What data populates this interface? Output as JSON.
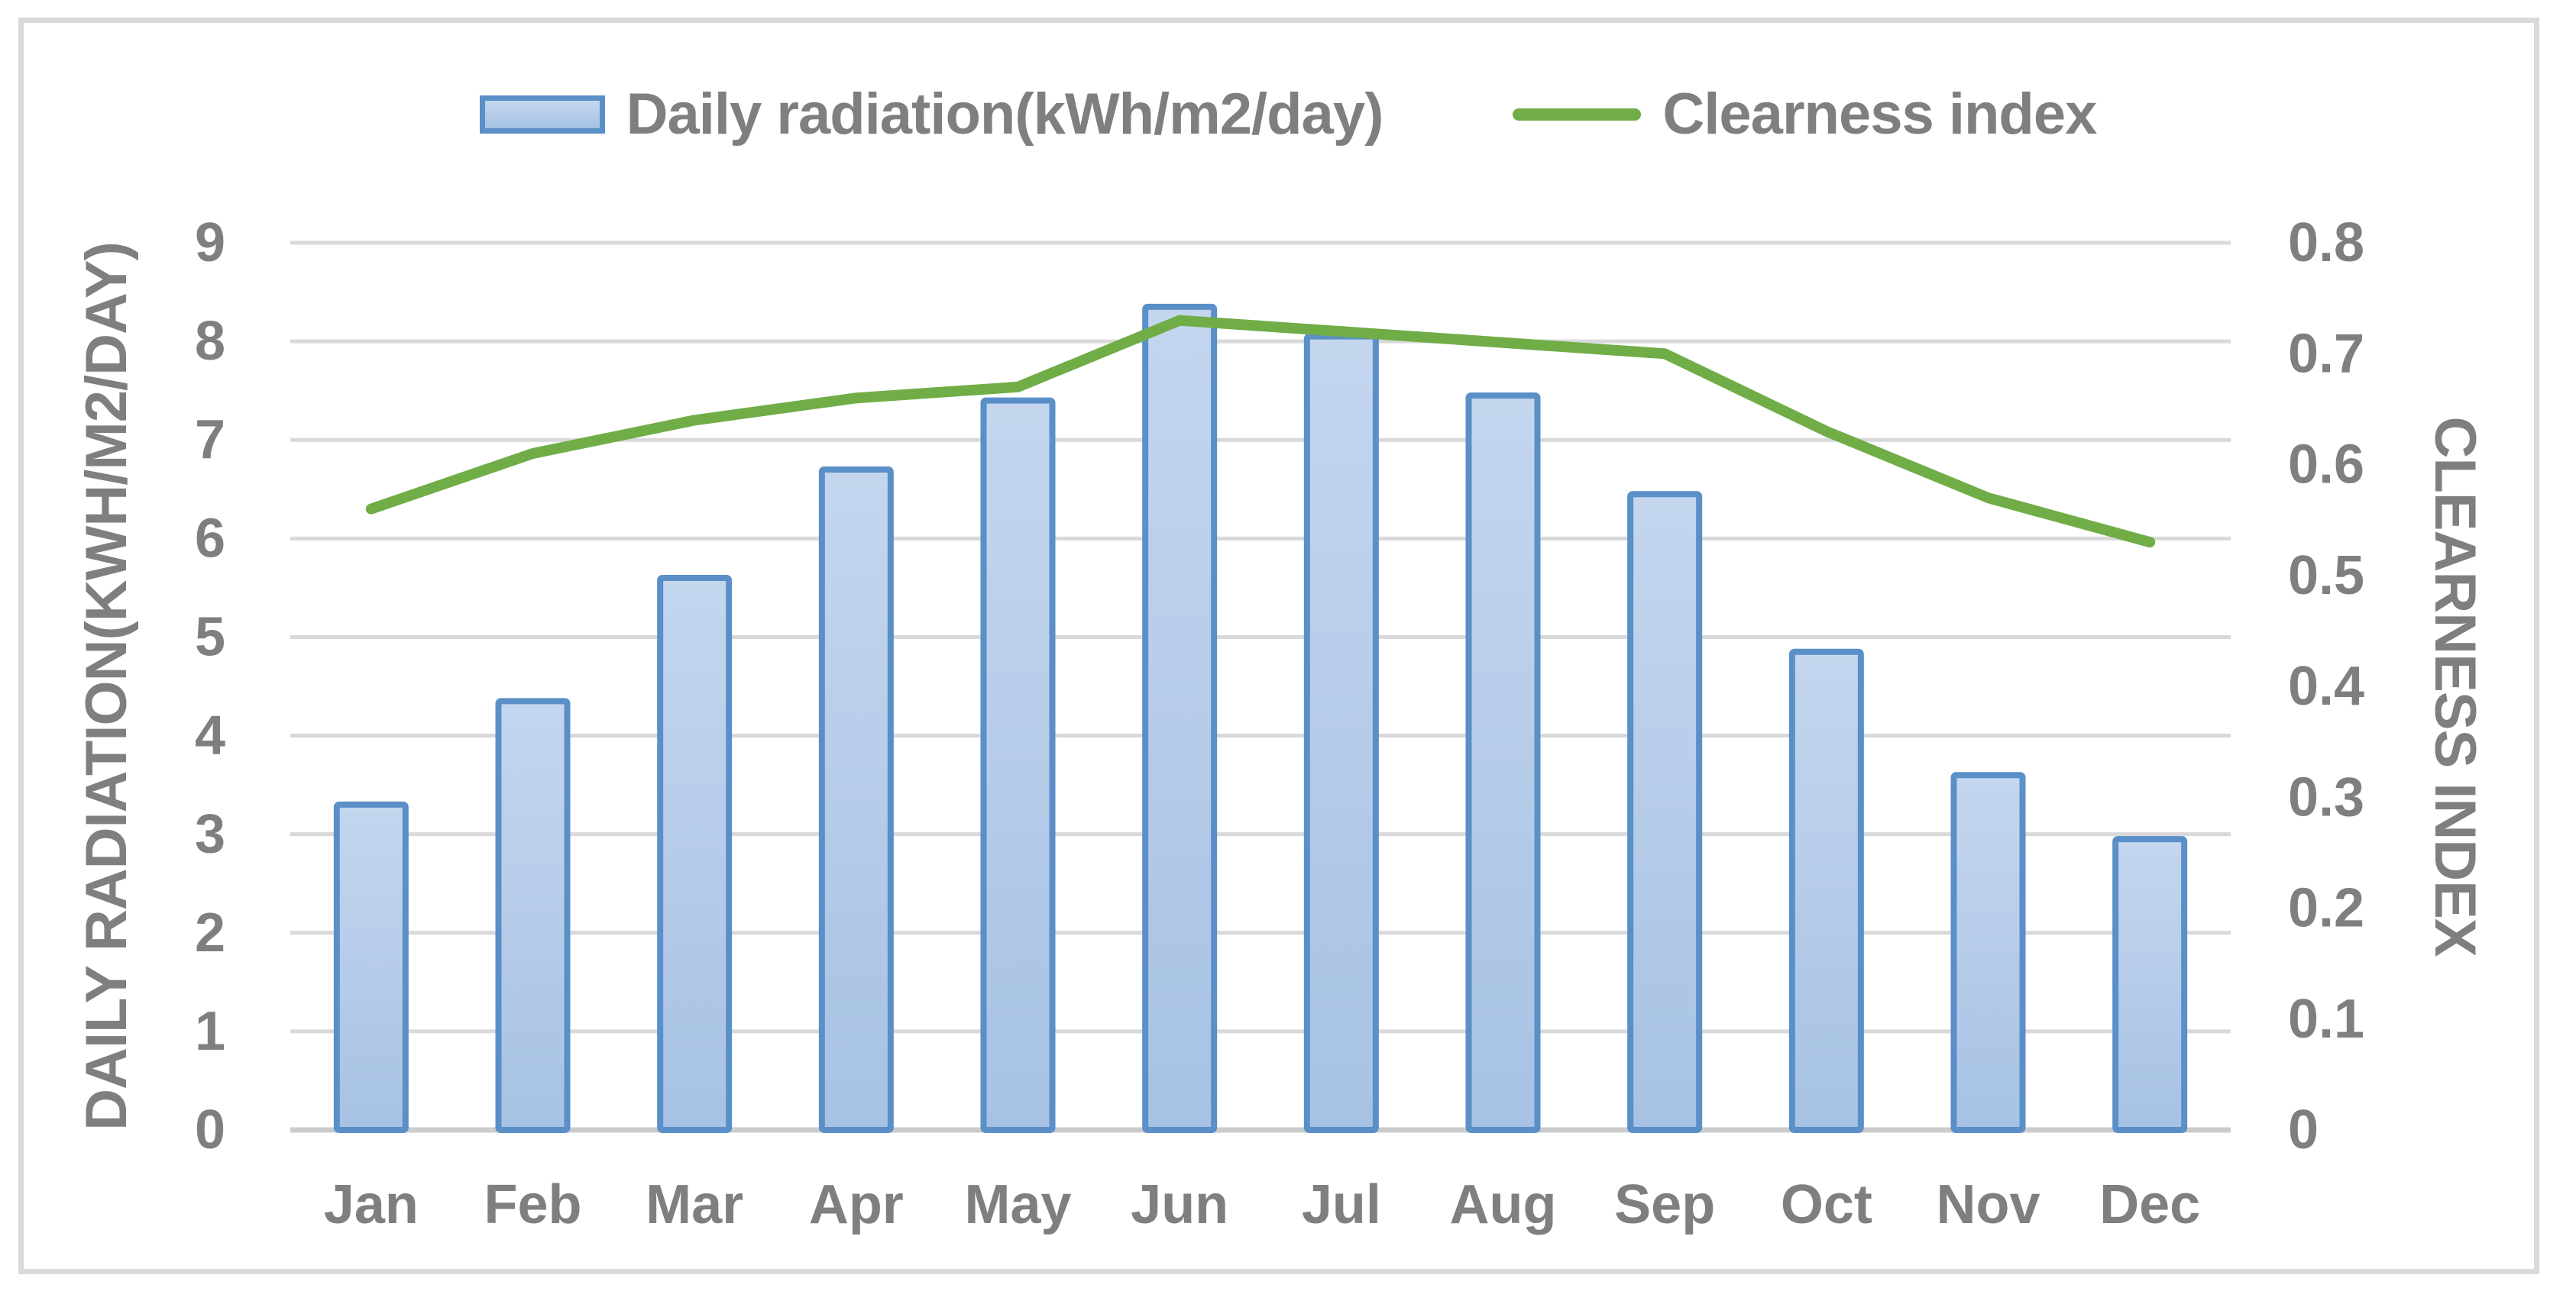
{
  "chart_data": {
    "type": "bar",
    "subtype": "combo-bar-line",
    "categories": [
      "Jan",
      "Feb",
      "Mar",
      "Apr",
      "May",
      "Jun",
      "Jul",
      "Aug",
      "Sep",
      "Oct",
      "Nov",
      "Dec"
    ],
    "series": [
      {
        "name": "Daily radiation(kWh/m2/day)",
        "type": "bar",
        "axis": "left",
        "values": [
          3.3,
          4.35,
          5.6,
          6.7,
          7.4,
          8.35,
          8.05,
          7.45,
          6.45,
          4.85,
          3.6,
          2.95
        ],
        "fill_top": "#c4d6ee",
        "fill_bottom": "#a7c2e4",
        "border_color": "#5a8fc8"
      },
      {
        "name": "Clearness index",
        "type": "line",
        "axis": "right",
        "values": [
          0.56,
          0.61,
          0.64,
          0.66,
          0.67,
          0.73,
          0.72,
          0.71,
          0.7,
          0.63,
          0.57,
          0.53
        ],
        "color": "#70ad47"
      }
    ],
    "left_axis": {
      "title": "DAILY RADIATION(KWH/M2/DAY)",
      "min": 0,
      "max": 9,
      "step": 1,
      "tick_labels": [
        "0",
        "1",
        "2",
        "3",
        "4",
        "5",
        "6",
        "7",
        "8",
        "9"
      ]
    },
    "right_axis": {
      "title": "CLEARNESS INDEX",
      "min": 0,
      "max": 0.8,
      "step": 0.1,
      "tick_labels": [
        "0",
        "0.1",
        "0.2",
        "0.3",
        "0.4",
        "0.5",
        "0.6",
        "0.7",
        "0.8"
      ]
    },
    "legend_position": "top",
    "grid": {
      "show": true,
      "gridline_color": "#d9d9d9",
      "axis_line_color": "#cccccc"
    },
    "text_color": "#7f7f7f",
    "frame_border_color": "#dadada",
    "background": "#ffffff"
  }
}
